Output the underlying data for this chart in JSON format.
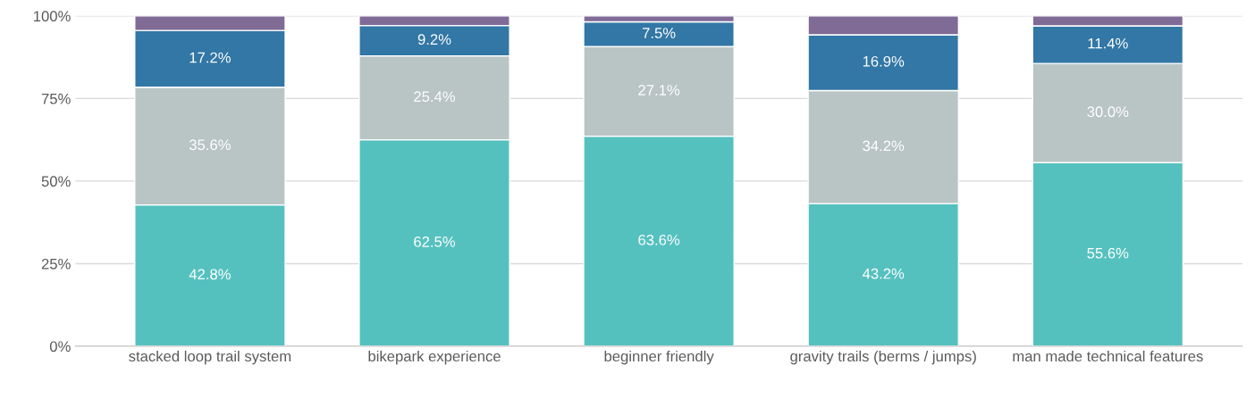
{
  "chart_data": {
    "type": "bar",
    "stacked": true,
    "categories": [
      "stacked loop trail system",
      "bikepark experience",
      "beginner friendly",
      "gravity trails (berms / jumps)",
      "man made technical features"
    ],
    "series": [
      {
        "color": "#55c1bf",
        "values": [
          42.8,
          62.5,
          63.6,
          43.2,
          55.6
        ],
        "value_labels": [
          "42.8%",
          "62.5%",
          "63.6%",
          "43.2%",
          "55.6%"
        ]
      },
      {
        "color": "#b9c4c5",
        "values": [
          35.6,
          25.4,
          27.1,
          34.2,
          30.0
        ],
        "value_labels": [
          "35.6%",
          "25.4%",
          "27.1%",
          "34.2%",
          "30.0%"
        ]
      },
      {
        "color": "#3277a5",
        "values": [
          17.2,
          9.2,
          7.5,
          16.9,
          11.4
        ],
        "value_labels": [
          "17.2%",
          "9.2%",
          "7.5%",
          "16.9%",
          "11.4%"
        ]
      },
      {
        "color": "#7f6b96",
        "values": [
          4.4,
          2.9,
          1.8,
          5.7,
          3.0
        ]
      }
    ],
    "ylim": [
      0,
      100
    ],
    "yticks": [
      {
        "value": 0,
        "label": "0%"
      },
      {
        "value": 25,
        "label": "25%"
      },
      {
        "value": 50,
        "label": "50%"
      },
      {
        "value": 75,
        "label": "75%"
      },
      {
        "value": 100,
        "label": "100%"
      }
    ],
    "grid": "y",
    "legend": false
  }
}
